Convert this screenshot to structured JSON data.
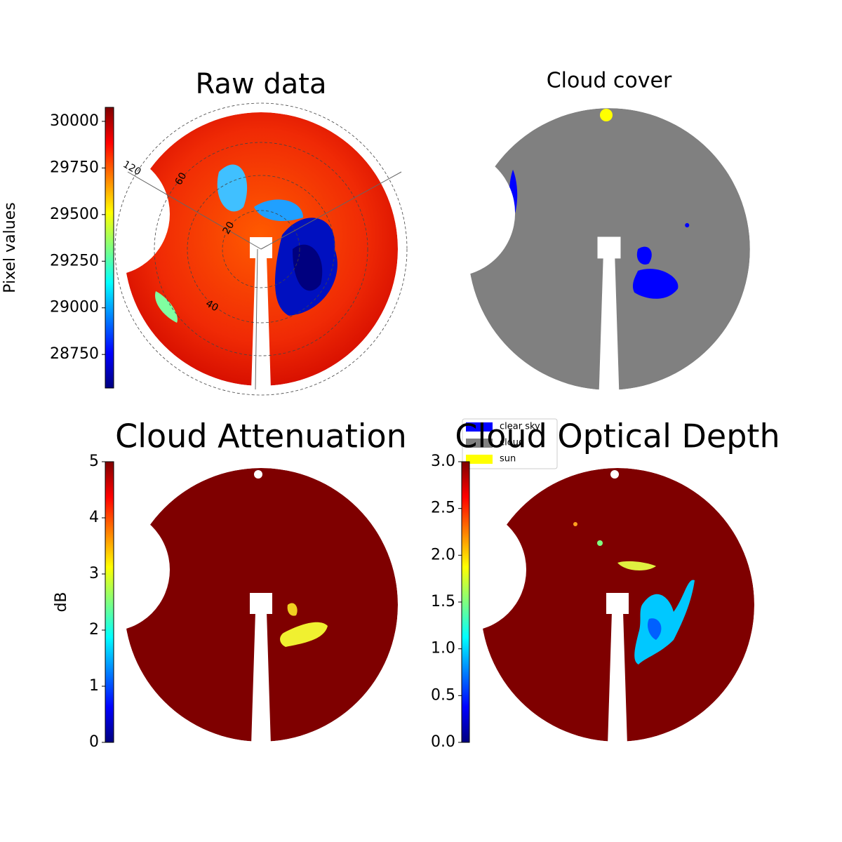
{
  "chart_data": [
    {
      "type": "heatmap",
      "title": "Raw data",
      "colorbar_label": "Pixel values",
      "colormap": "jet",
      "clim": [
        28570,
        30075
      ],
      "cticks": [
        28750,
        29000,
        29250,
        29500,
        29750,
        30000
      ],
      "polar_labels": [
        "120",
        "60",
        "20",
        "40"
      ]
    },
    {
      "type": "classification",
      "title": "Cloud cover",
      "legend": [
        {
          "name": "clear sky",
          "color": "#0000ff"
        },
        {
          "name": "cloud",
          "color": "#808080"
        },
        {
          "name": "sun",
          "color": "#ffff00"
        }
      ]
    },
    {
      "type": "heatmap",
      "title": "Cloud Attenuation",
      "colorbar_label": "dB",
      "colormap": "jet",
      "clim": [
        0,
        5
      ],
      "cticks": [
        0,
        1,
        2,
        3,
        4,
        5
      ]
    },
    {
      "type": "heatmap",
      "title": "Cloud Optical Depth",
      "colormap": "jet",
      "clim": [
        0,
        3
      ],
      "cticks": [
        {
          "value": 0,
          "label": "0.0"
        },
        0.5,
        {
          "value": 1,
          "label": "1.0"
        },
        1.5,
        {
          "value": 2,
          "label": "2.0"
        },
        2.5,
        {
          "value": 3,
          "label": "3.0"
        }
      ]
    }
  ]
}
